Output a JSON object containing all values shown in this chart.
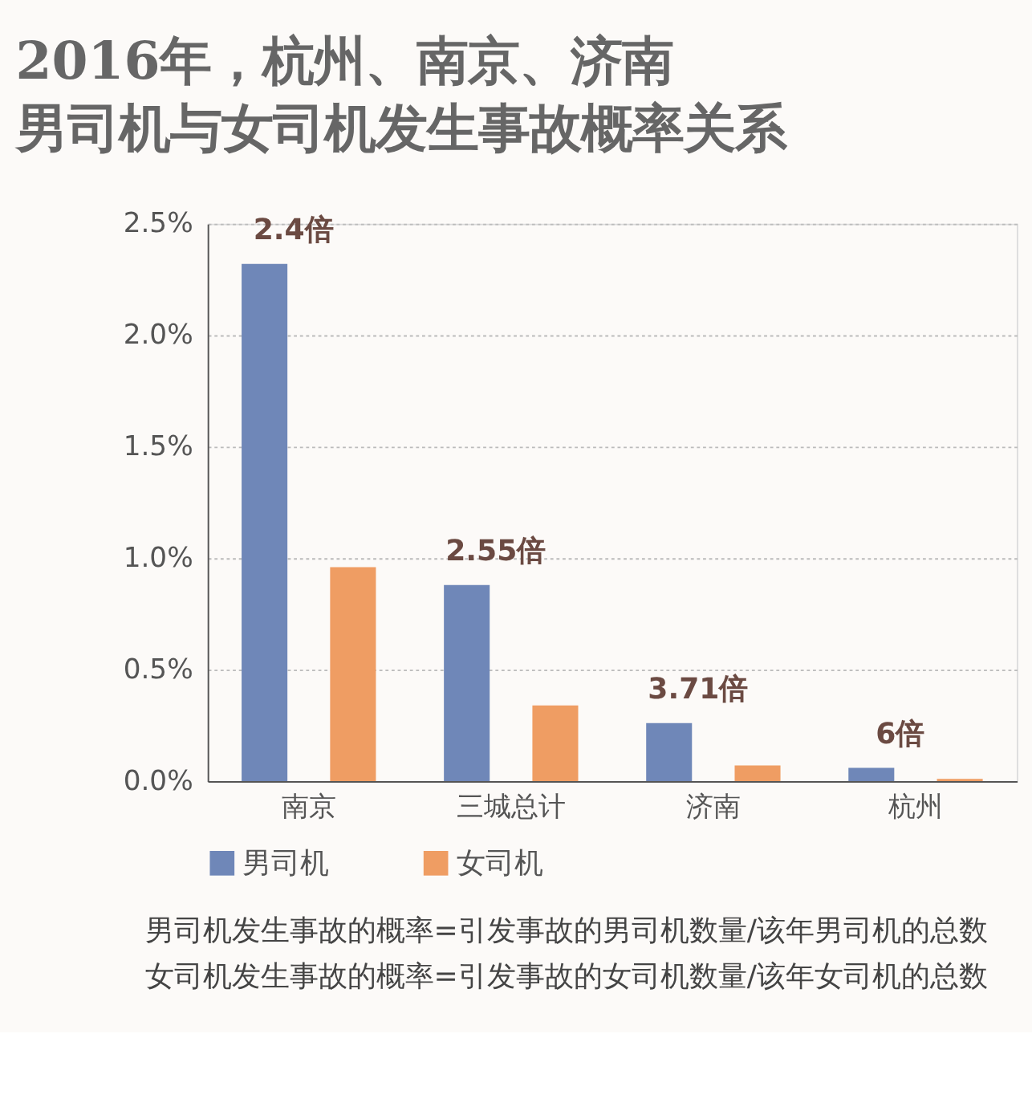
{
  "chart_data": {
    "type": "bar",
    "title": [
      "2016年，杭州、南京、济南",
      "男司机与女司机发生事故概率关系"
    ],
    "categories": [
      "南京",
      "三城总计",
      "济南",
      "杭州"
    ],
    "series": [
      {
        "name": "男司机",
        "color": "#6f87b8",
        "values": [
          2.32,
          0.88,
          0.26,
          0.06
        ]
      },
      {
        "name": "女司机",
        "color": "#ef9d63",
        "values": [
          0.96,
          0.34,
          0.07,
          0.01
        ]
      }
    ],
    "ylim": [
      0,
      2.5
    ],
    "yticks": [
      {
        "value": 0,
        "label": "0.0%"
      },
      {
        "value": 0.5,
        "label": "0.5%"
      },
      {
        "value": 1,
        "label": "1.0%"
      },
      {
        "value": 1.5,
        "label": "1.5%"
      },
      {
        "value": 2,
        "label": "2.0%"
      },
      {
        "value": 2.5,
        "label": "2.5%"
      }
    ],
    "grid": "y",
    "legend": "bottom",
    "annotations": [
      "2.4倍",
      "2.55倍",
      "3.71倍",
      "6倍",
      "男司机发生事故的概率=引发事故的男司机数量/该年男司机的总数",
      "女司机发生事故的概率=引发事故的女司机数量/该年女司机的总数"
    ]
  }
}
